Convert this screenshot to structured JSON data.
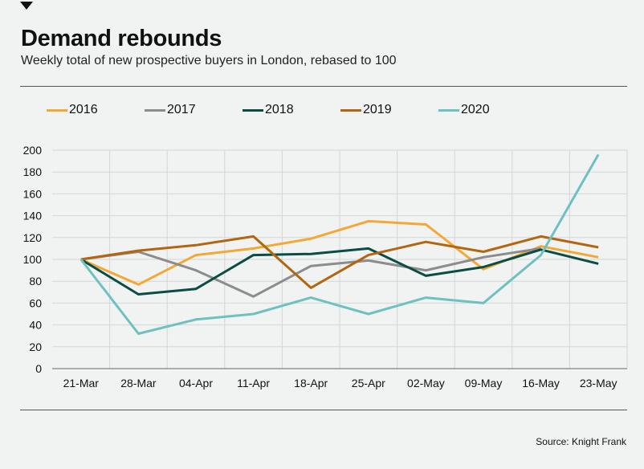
{
  "header": {
    "title": "Demand rebounds",
    "subtitle": "Weekly total of new prospective buyers in London, rebased to 100"
  },
  "footer": {
    "source": "Source: Knight Frank"
  },
  "chart_data": {
    "type": "line",
    "title": "Demand rebounds",
    "subtitle": "Weekly total of new prospective buyers in London, rebased to 100",
    "xlabel": "",
    "ylabel": "",
    "x": [
      "21-Mar",
      "28-Mar",
      "04-Apr",
      "11-Apr",
      "18-Apr",
      "25-Apr",
      "02-May",
      "09-May",
      "16-May",
      "23-May"
    ],
    "ylim": [
      0,
      200
    ],
    "yticks": [
      0,
      20,
      40,
      60,
      80,
      100,
      120,
      140,
      160,
      180,
      200
    ],
    "grid": true,
    "legend_position": "top",
    "series": [
      {
        "name": "2016",
        "color": "#f5a733",
        "values": [
          100,
          77,
          104,
          110,
          119,
          135,
          132,
          91,
          112,
          102
        ]
      },
      {
        "name": "2017",
        "color": "#8c8c8c",
        "values": [
          100,
          107,
          90,
          66,
          94,
          99,
          90,
          102,
          110,
          null
        ]
      },
      {
        "name": "2018",
        "color": "#0b4d45",
        "values": [
          100,
          68,
          73,
          104,
          105,
          110,
          85,
          93,
          109,
          96
        ]
      },
      {
        "name": "2019",
        "color": "#b3650f",
        "values": [
          100,
          108,
          113,
          121,
          74,
          104,
          116,
          107,
          121,
          111
        ]
      },
      {
        "name": "2020",
        "color": "#6ec1c0",
        "values": [
          100,
          32,
          45,
          50,
          65,
          50,
          65,
          60,
          104,
          196
        ]
      }
    ]
  }
}
